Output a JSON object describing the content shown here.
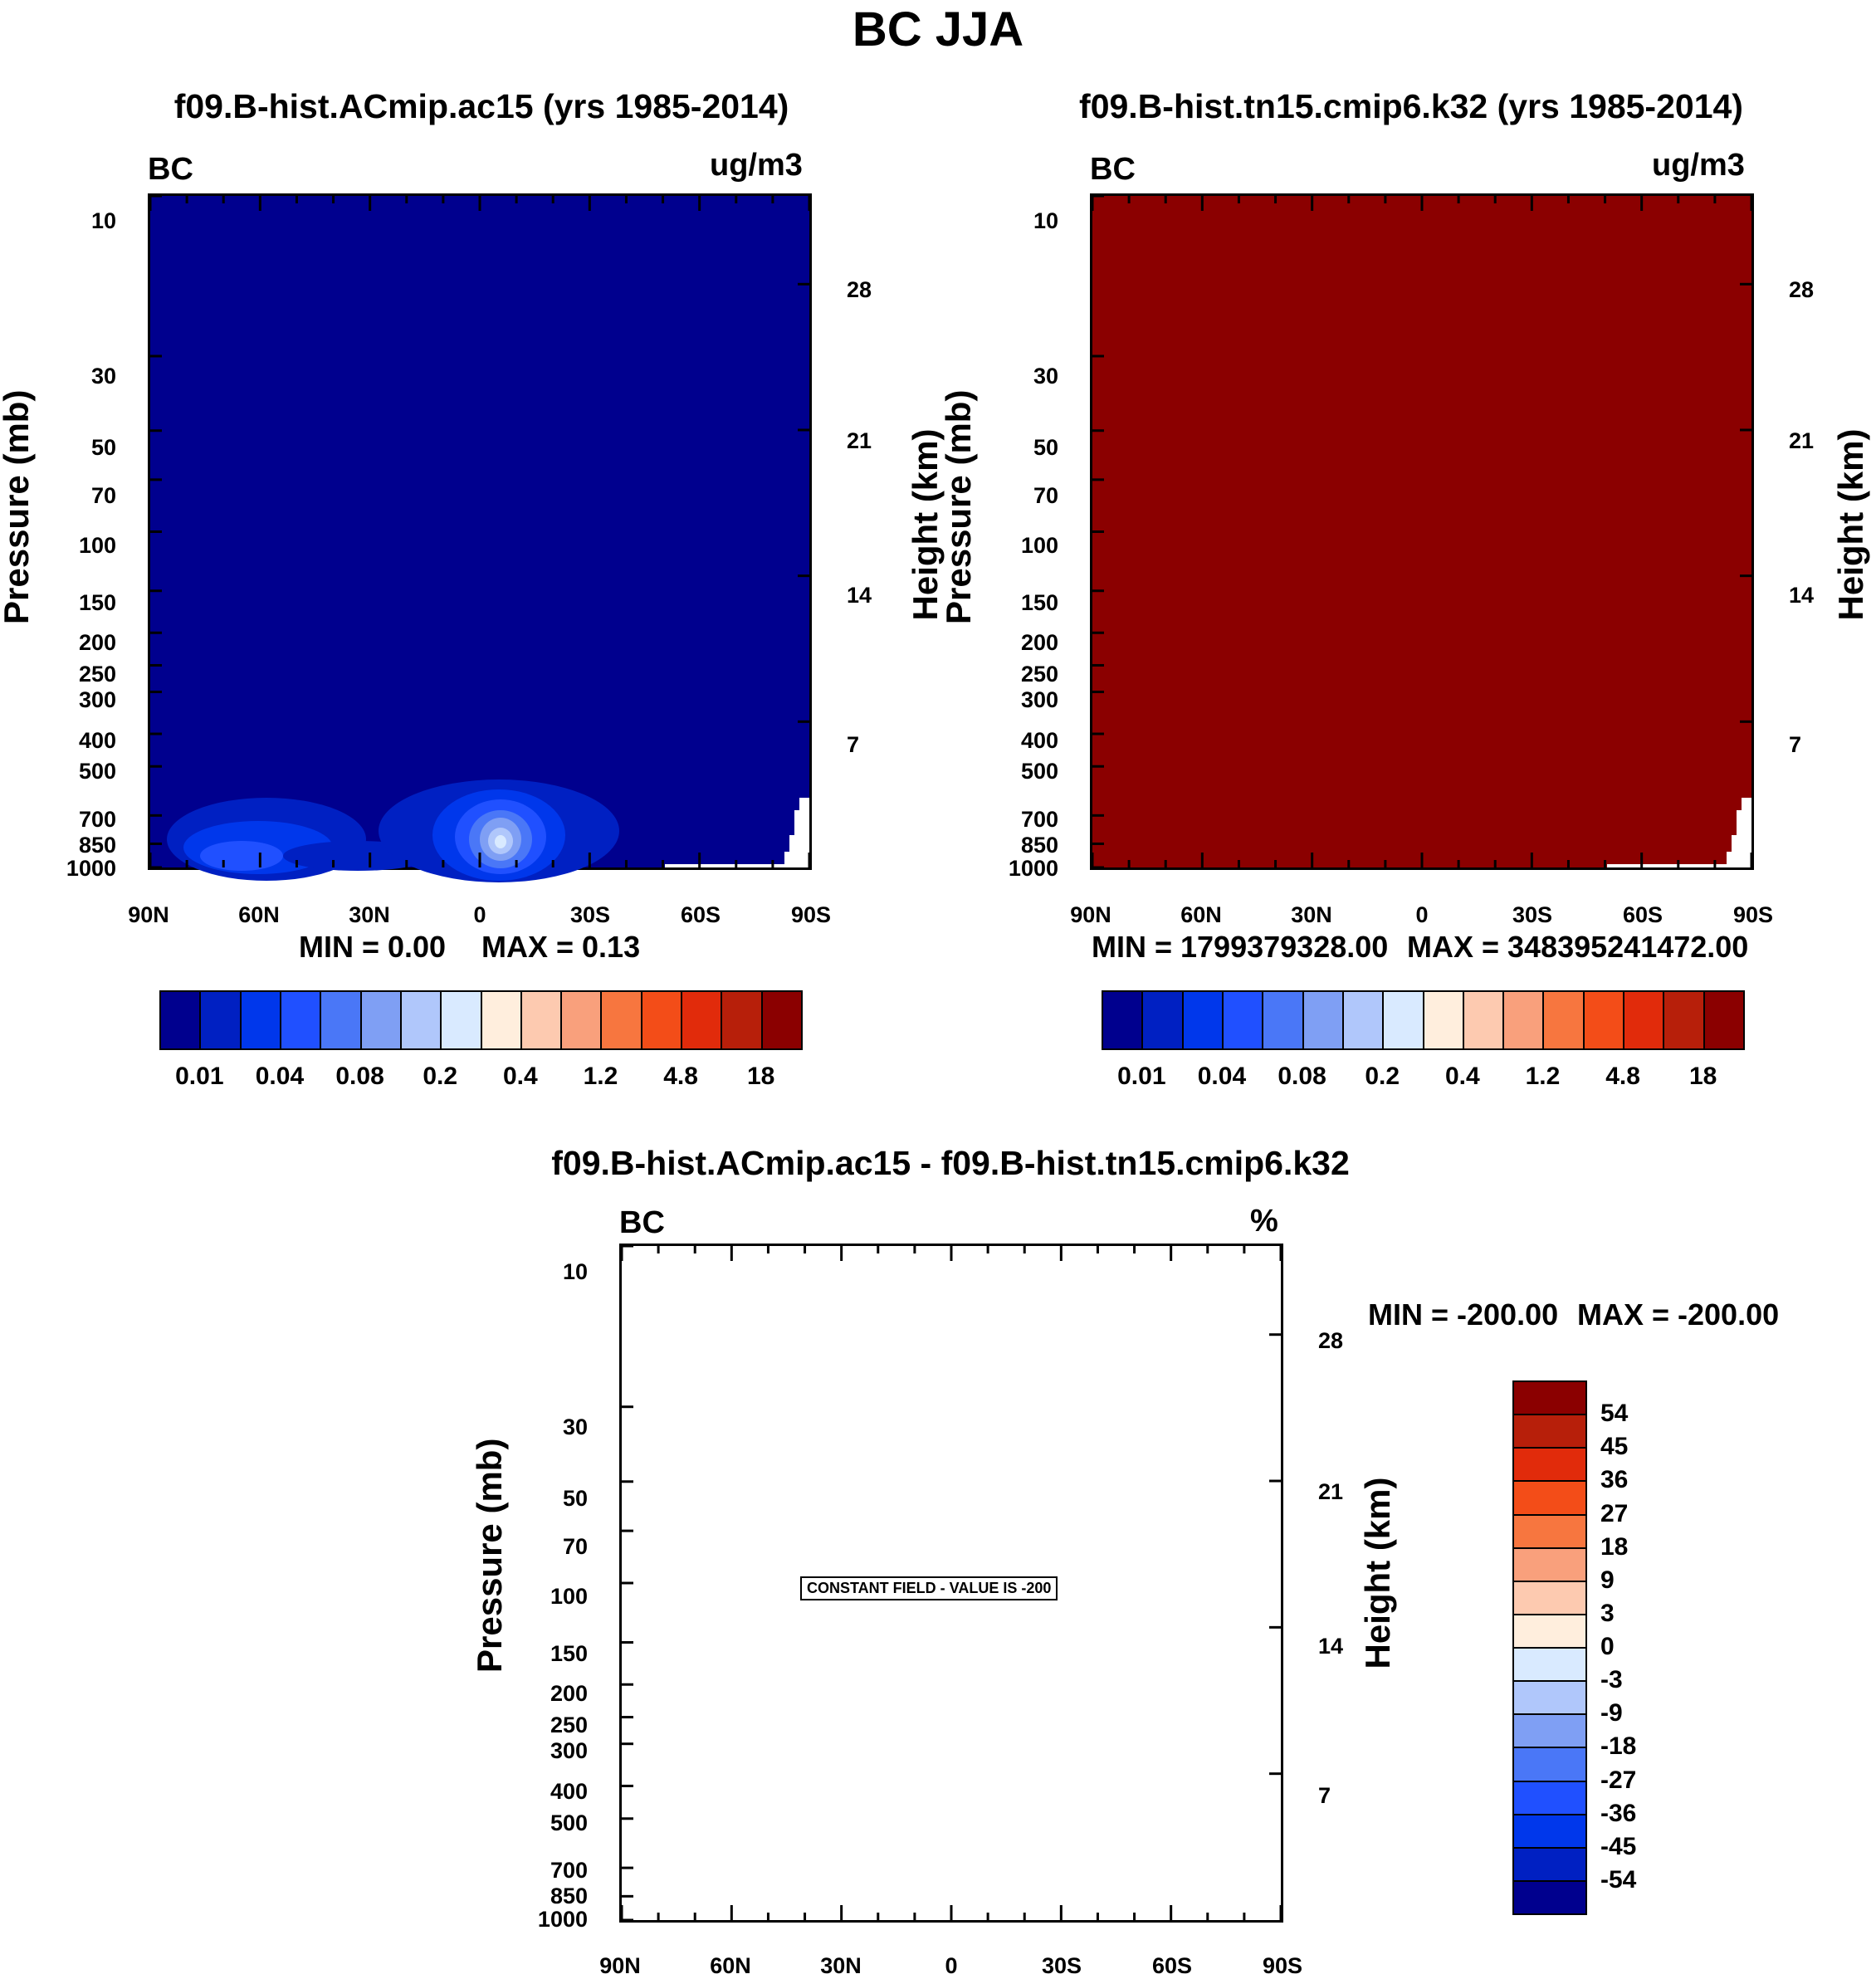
{
  "figure_title": "BC JJA",
  "chart_data": [
    {
      "type": "heatmap",
      "title": "f09.B-hist.ACmip.ac15 (yrs 1985-2014)",
      "variable": "BC",
      "units": "ug/m3",
      "ylabel": "Pressure (mb)",
      "ylabel_right": "Height (km)",
      "x_ticks": [
        "90N",
        "60N",
        "30N",
        "0",
        "30S",
        "60S",
        "90S"
      ],
      "y_ticks": [
        10,
        30,
        50,
        70,
        100,
        150,
        200,
        250,
        300,
        400,
        500,
        700,
        850,
        1000
      ],
      "y_ticks_right": [
        28,
        21,
        14,
        7
      ],
      "ylim": [
        1000,
        10
      ],
      "min_label": "MIN =   0.00",
      "max_label": "MAX =   0.13",
      "min": 0.0,
      "max": 0.13,
      "background_level": 0.01,
      "colorbar_ticks": [
        "0.01",
        "0.04",
        "0.08",
        "0.2",
        "0.4",
        "1.2",
        "4.8",
        "18"
      ]
    },
    {
      "type": "heatmap",
      "title": "f09.B-hist.tn15.cmip6.k32 (yrs 1985-2014)",
      "variable": "BC",
      "units": "ug/m3",
      "ylabel": "Pressure (mb)",
      "ylabel_right": "Height (km)",
      "x_ticks": [
        "90N",
        "60N",
        "30N",
        "0",
        "30S",
        "60S",
        "90S"
      ],
      "y_ticks": [
        10,
        30,
        50,
        70,
        100,
        150,
        200,
        250,
        300,
        400,
        500,
        700,
        850,
        1000
      ],
      "y_ticks_right": [
        28,
        21,
        14,
        7
      ],
      "ylim": [
        1000,
        10
      ],
      "min_label": "MIN = 1799379328.00",
      "max_label": "MAX = 348395241472.00",
      "min": 1799379328.0,
      "max": 348395241472.0,
      "colorbar_ticks": [
        "0.01",
        "0.04",
        "0.08",
        "0.2",
        "0.4",
        "1.2",
        "4.8",
        "18"
      ]
    },
    {
      "type": "heatmap",
      "title": "f09.B-hist.ACmip.ac15 - f09.B-hist.tn15.cmip6.k32",
      "variable": "BC",
      "units": "%",
      "ylabel": "Pressure (mb)",
      "ylabel_right": "Height (km)",
      "x_ticks": [
        "90N",
        "60N",
        "30N",
        "0",
        "30S",
        "60S",
        "90S"
      ],
      "y_ticks": [
        10,
        30,
        50,
        70,
        100,
        150,
        200,
        250,
        300,
        400,
        500,
        700,
        850,
        1000
      ],
      "y_ticks_right": [
        28,
        21,
        14,
        7
      ],
      "ylim": [
        1000,
        10
      ],
      "min_label": "MIN = -200.00",
      "max_label": "MAX = -200.00",
      "min": -200.0,
      "max": -200.0,
      "notice": "CONSTANT FIELD - VALUE IS -200",
      "colorbar_ticks": [
        "54",
        "45",
        "36",
        "27",
        "18",
        "9",
        "3",
        "0",
        "-3",
        "-9",
        "-18",
        "-27",
        "-36",
        "-45",
        "-54"
      ]
    }
  ],
  "palette": [
    "#00008e",
    "#0020c2",
    "#0037eb",
    "#2050ff",
    "#4a77f7",
    "#7f9ff4",
    "#b0c7fb",
    "#d9eaff",
    "#ffeedd",
    "#fdcab0",
    "#f9a07c",
    "#f7763f",
    "#f34d18",
    "#e12b0b",
    "#b71f0a",
    "#8b0000"
  ]
}
